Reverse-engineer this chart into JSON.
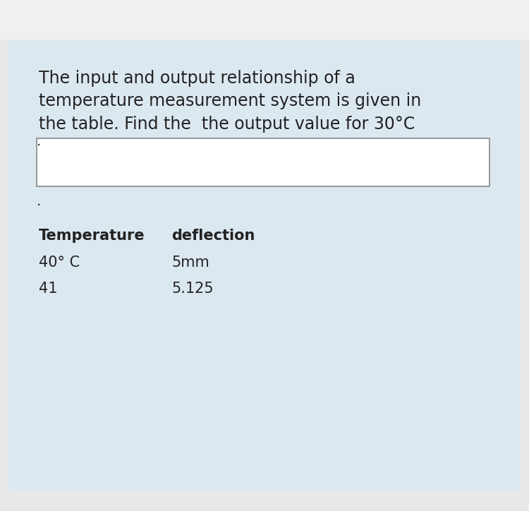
{
  "bg_color_top": "#e8e8e8",
  "bg_color_main": "#dce8f0",
  "white_bar_color": "#ffffff",
  "border_color": "#888888",
  "text_color": "#222222",
  "title_line1": "The input and output relationship of a",
  "title_line2": "temperature measurement system is given in",
  "title_line3": "the table. Find the  the output value for 30°C",
  "col1_header": "Temperature",
  "col2_header": "deflection",
  "row1_col1": "40° C",
  "row1_col2": "5mm",
  "row2_col1": "41",
  "row2_col2": "5.125",
  "font_size_title": 17,
  "font_size_header": 15,
  "font_size_table": 15
}
